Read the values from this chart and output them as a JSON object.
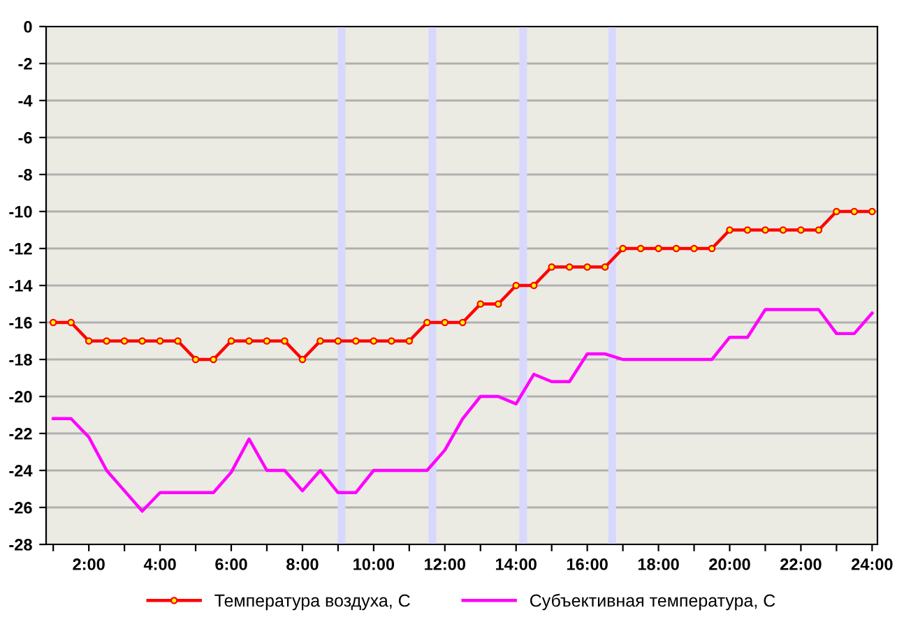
{
  "chart_data": {
    "type": "line",
    "x": [
      1,
      1.5,
      2,
      2.5,
      3,
      3.5,
      4,
      4.5,
      5,
      5.5,
      6,
      6.5,
      7,
      7.5,
      8,
      8.5,
      9,
      9.5,
      10,
      10.5,
      11,
      11.5,
      12,
      12.5,
      13,
      13.5,
      14,
      14.5,
      15,
      15.5,
      16,
      16.5,
      17,
      17.5,
      18,
      18.5,
      19,
      19.5,
      20,
      20.5,
      21,
      21.5,
      22,
      22.5,
      23,
      23.5,
      24
    ],
    "series": [
      {
        "name": "Температура воздуха, С",
        "color": "#ff0000",
        "marker": "circle",
        "values": [
          -16,
          -16,
          -17,
          -17,
          -17,
          -17,
          -17,
          -17,
          -18,
          -18,
          -17,
          -17,
          -17,
          -17,
          -18,
          -17,
          -17,
          -17,
          -17,
          -17,
          -17,
          -16,
          -16,
          -16,
          -15,
          -15,
          -14,
          -14,
          -13,
          -13,
          -13,
          -13,
          -12,
          -12,
          -12,
          -12,
          -12,
          -12,
          -11,
          -11,
          -11,
          -11,
          -11,
          -11,
          -10,
          -10,
          -10
        ]
      },
      {
        "name": "Субъективная температура, С",
        "color": "#ff00ff",
        "values": [
          -21.2,
          -21.2,
          -22.2,
          -24,
          -25.1,
          -26.2,
          -25.2,
          -25.2,
          -25.2,
          -25.2,
          -24.1,
          -22.3,
          -24,
          -24,
          -25.1,
          -24,
          -25.2,
          -25.2,
          -24,
          -24,
          -24,
          -24,
          -22.9,
          -21.2,
          -20,
          -20,
          -20.4,
          -18.8,
          -19.2,
          -19.2,
          -17.7,
          -17.7,
          -18,
          -18,
          -18,
          -18,
          -18,
          -18,
          -16.8,
          -16.8,
          -15.3,
          -15.3,
          -15.3,
          -15.3,
          -16.6,
          -16.6,
          -15.5
        ]
      }
    ],
    "xlim": [
      0.8,
      24.15
    ],
    "xticks": [
      {
        "value": 1,
        "label": null
      },
      {
        "value": 2,
        "label": "2:00"
      },
      {
        "value": 3,
        "label": null
      },
      {
        "value": 4,
        "label": "4:00"
      },
      {
        "value": 5,
        "label": null
      },
      {
        "value": 6,
        "label": "6:00"
      },
      {
        "value": 7,
        "label": null
      },
      {
        "value": 8,
        "label": "8:00"
      },
      {
        "value": 9,
        "label": null
      },
      {
        "value": 10,
        "label": "10:00"
      },
      {
        "value": 11,
        "label": null
      },
      {
        "value": 12,
        "label": "12:00"
      },
      {
        "value": 13,
        "label": null
      },
      {
        "value": 14,
        "label": "14:00"
      },
      {
        "value": 15,
        "label": null
      },
      {
        "value": 16,
        "label": "16:00"
      },
      {
        "value": 17,
        "label": null
      },
      {
        "value": 18,
        "label": "18:00"
      },
      {
        "value": 19,
        "label": null
      },
      {
        "value": 20,
        "label": "20:00"
      },
      {
        "value": 21,
        "label": null
      },
      {
        "value": 22,
        "label": "22:00"
      },
      {
        "value": 23,
        "label": null
      },
      {
        "value": 24,
        "label": "24:00"
      }
    ],
    "ylim": [
      -28,
      0
    ],
    "yticks": [
      -28,
      -26,
      -24,
      -22,
      -20,
      -18,
      -16,
      -14,
      -12,
      -10,
      -8,
      -6,
      -4,
      -2,
      0
    ],
    "ref_lines": [
      {
        "axis": "x",
        "value": 9.1,
        "color": "#d8d8ff"
      },
      {
        "axis": "x",
        "value": 11.65,
        "color": "#d8d8ff"
      },
      {
        "axis": "x",
        "value": 14.2,
        "color": "#d8d8ff"
      },
      {
        "axis": "x",
        "value": 16.7,
        "color": "#d8d8ff"
      }
    ],
    "grid": "y",
    "legend": "bottom",
    "line_style": "solid"
  }
}
